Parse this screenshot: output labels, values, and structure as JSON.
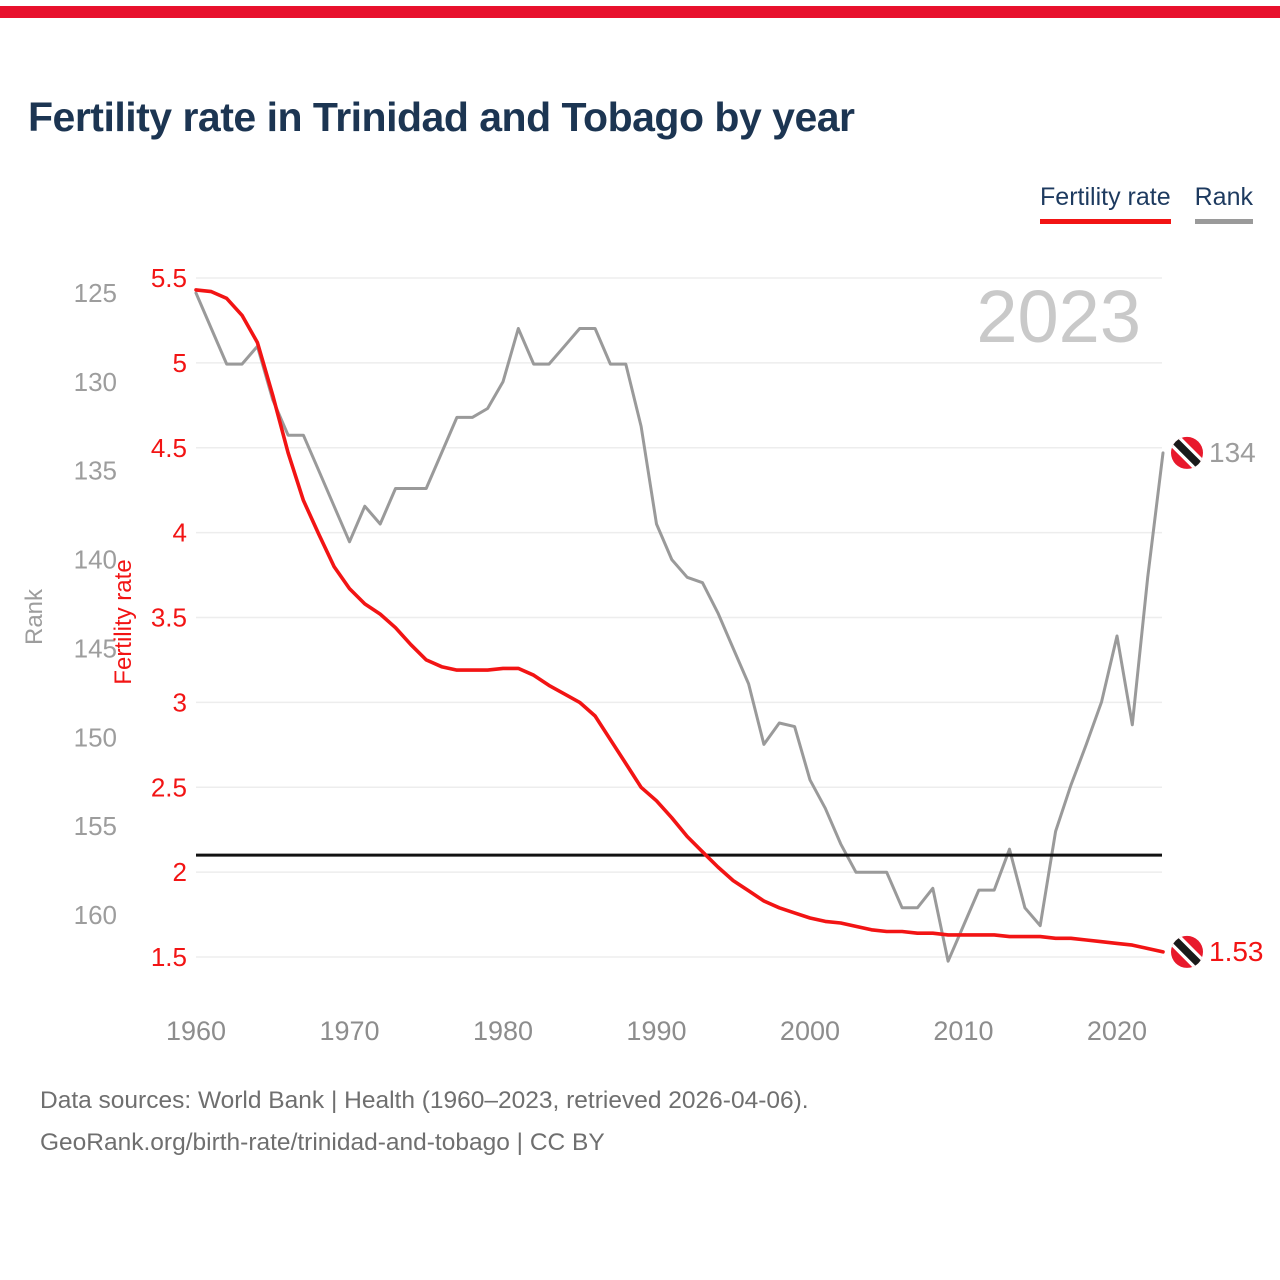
{
  "page": {
    "background": "#ffffff",
    "accent_bar_color": "#e8112d"
  },
  "header": {
    "title": "Fertility rate in Trinidad and Tobago by year"
  },
  "legend": {
    "items": [
      {
        "label": "Fertility rate",
        "color": "#f21414"
      },
      {
        "label": "Rank",
        "color": "#9a9a9a"
      }
    ]
  },
  "watermark": "2023",
  "axes": {
    "rank_axis": {
      "title": "Rank",
      "ticks": [
        125,
        130,
        135,
        140,
        145,
        150,
        155,
        160
      ],
      "color": "#9d9d9d",
      "inverted": true
    },
    "fertility_axis": {
      "title": "Fertility rate",
      "ticks": [
        "5.5",
        "5",
        "4.5",
        "4",
        "3.5",
        "3",
        "2.5",
        "2",
        "1.5"
      ],
      "color": "#f21414"
    },
    "x_axis": {
      "ticks": [
        1960,
        1970,
        1980,
        1990,
        2000,
        2010,
        2020
      ],
      "color": "#8d8d8d"
    }
  },
  "end_labels": {
    "rank": {
      "value": "134",
      "color": "#9d9d9d"
    },
    "fertility": {
      "value": "1.53",
      "color": "#f21414"
    }
  },
  "reference_line": {
    "value": 2.1,
    "color": "#111111"
  },
  "grid_color": "#ededed",
  "flag": {
    "country": "Trinidad and Tobago",
    "red": "#e8192c",
    "black": "#1a1a1a",
    "white": "#ffffff"
  },
  "footer": {
    "line1": "Data sources: World Bank | Health (1960–2023, retrieved 2026-04-06).",
    "line2": "GeoRank.org/birth-rate/trinidad-and-tobago | CC BY"
  },
  "chart_data": {
    "type": "line",
    "title": "Fertility rate in Trinidad and Tobago by year",
    "x": [
      1960,
      1961,
      1962,
      1963,
      1964,
      1965,
      1966,
      1967,
      1968,
      1969,
      1970,
      1971,
      1972,
      1973,
      1974,
      1975,
      1976,
      1977,
      1978,
      1979,
      1980,
      1981,
      1982,
      1983,
      1984,
      1985,
      1986,
      1987,
      1988,
      1989,
      1990,
      1991,
      1992,
      1993,
      1994,
      1995,
      1996,
      1997,
      1998,
      1999,
      2000,
      2001,
      2002,
      2003,
      2004,
      2005,
      2006,
      2007,
      2008,
      2009,
      2010,
      2011,
      2012,
      2013,
      2014,
      2015,
      2016,
      2017,
      2018,
      2019,
      2020,
      2021,
      2022,
      2023
    ],
    "series": [
      {
        "name": "Fertility rate",
        "axis": "fertility",
        "color": "#f21414",
        "values": [
          5.43,
          5.42,
          5.38,
          5.28,
          5.12,
          4.81,
          4.47,
          4.19,
          3.99,
          3.8,
          3.67,
          3.58,
          3.52,
          3.44,
          3.34,
          3.25,
          3.21,
          3.19,
          3.19,
          3.19,
          3.2,
          3.2,
          3.16,
          3.1,
          3.05,
          3.0,
          2.92,
          2.78,
          2.64,
          2.5,
          2.42,
          2.32,
          2.21,
          2.12,
          2.03,
          1.95,
          1.89,
          1.83,
          1.79,
          1.76,
          1.73,
          1.71,
          1.7,
          1.68,
          1.66,
          1.65,
          1.65,
          1.64,
          1.64,
          1.63,
          1.63,
          1.63,
          1.63,
          1.62,
          1.62,
          1.62,
          1.61,
          1.61,
          1.6,
          1.59,
          1.58,
          1.57,
          1.55,
          1.53
        ]
      },
      {
        "name": "Rank",
        "axis": "rank",
        "color": "#9a9a9a",
        "values": [
          125,
          127,
          129,
          129,
          128,
          131,
          133,
          133,
          135,
          137,
          139,
          137,
          138,
          136,
          136,
          136,
          134,
          132,
          132,
          131.5,
          130,
          127,
          129,
          129,
          128,
          127,
          127,
          129,
          129,
          132.5,
          138,
          140,
          141,
          141.3,
          143,
          145,
          147,
          150.4,
          149.2,
          149.4,
          152.4,
          154,
          156,
          157.6,
          157.6,
          157.6,
          159.6,
          159.6,
          158.5,
          162.6,
          160.6,
          158.6,
          158.6,
          156.3,
          159.6,
          160.6,
          155.3,
          152.7,
          150.4,
          148,
          144.3,
          149.3,
          141,
          134
        ]
      }
    ],
    "fertility_axis_range": [
      1.5,
      5.5
    ],
    "rank_axis_range": [
      125,
      160
    ],
    "rank_axis_inverted": true,
    "grid": "horizontal",
    "legend_position": "top-right",
    "annotations": {
      "replacement_line_fertility": 2.1,
      "year_watermark": "2023",
      "final_fertility": 1.53,
      "final_rank": 134
    }
  }
}
